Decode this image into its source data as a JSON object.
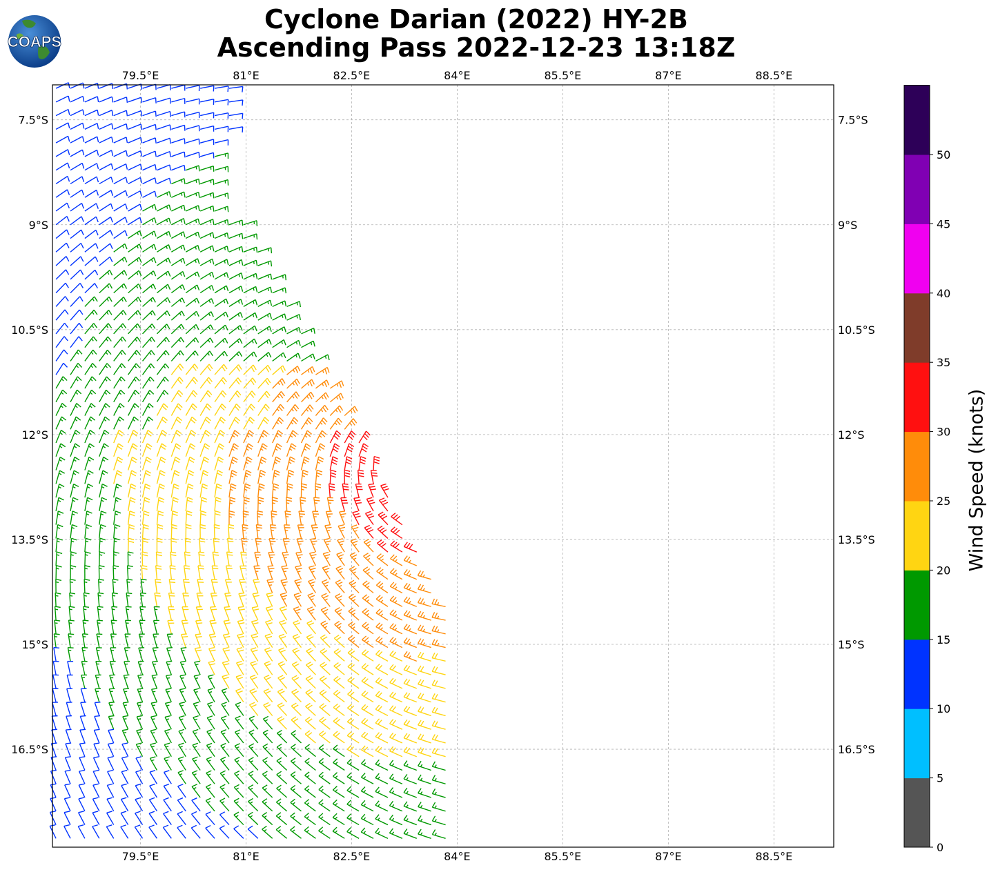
{
  "title_line1": "Cyclone Darian (2022) HY-2B",
  "title_line2": "Ascending Pass 2022-12-23 13:18Z",
  "logo_text": "COAPS",
  "map": {
    "lon_range": [
      78.25,
      89.35
    ],
    "lat_range": [
      -17.9,
      -7.0
    ],
    "lon_ticks": [
      "79.5°E",
      "81°E",
      "82.5°E",
      "84°E",
      "85.5°E",
      "87°E",
      "88.5°E"
    ],
    "lat_ticks": [
      "7.5°S",
      "9°S",
      "10.5°S",
      "12°S",
      "13.5°S",
      "15°S",
      "16.5°S"
    ],
    "gridlines": true,
    "swath_description": "scatterometer wind barbs"
  },
  "colorbar": {
    "label": "Wind Speed (knots)",
    "ticks": [
      "0",
      "5",
      "10",
      "15",
      "20",
      "25",
      "30",
      "35",
      "40",
      "45",
      "50"
    ],
    "bins": [
      {
        "min": 0,
        "max": 5,
        "color": "#555555"
      },
      {
        "min": 5,
        "max": 10,
        "color": "#00bfff"
      },
      {
        "min": 10,
        "max": 15,
        "color": "#0033ff"
      },
      {
        "min": 15,
        "max": 20,
        "color": "#009900"
      },
      {
        "min": 20,
        "max": 25,
        "color": "#ffd512"
      },
      {
        "min": 25,
        "max": 30,
        "color": "#ff8c0a"
      },
      {
        "min": 30,
        "max": 35,
        "color": "#ff1010"
      },
      {
        "min": 35,
        "max": 40,
        "color": "#7f3c2a"
      },
      {
        "min": 40,
        "max": 45,
        "color": "#f000f0"
      },
      {
        "min": 45,
        "max": 50,
        "color": "#8000b3"
      },
      {
        "min": 50,
        "max": 55,
        "color": "#2d0058"
      }
    ]
  }
}
